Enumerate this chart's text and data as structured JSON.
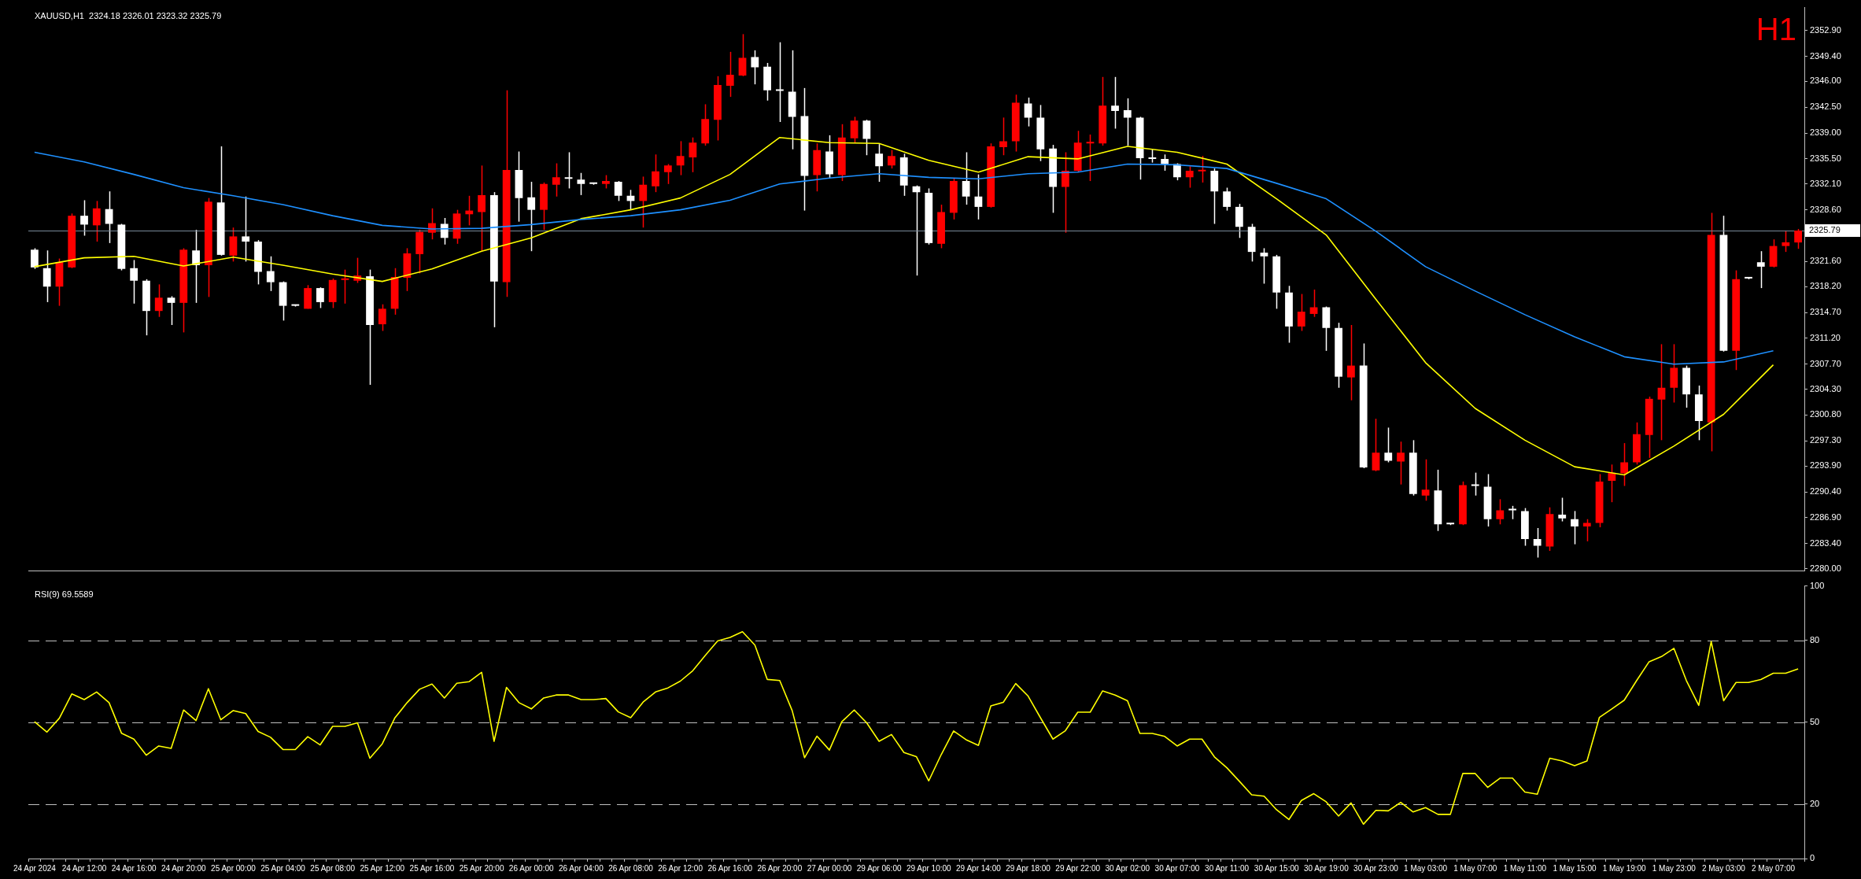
{
  "chart_data": [
    {
      "type": "candlestick",
      "title": "XAUUSD,H1  2324.18 2326.01 2323.32 2325.79",
      "annotations": [
        "H1"
      ],
      "categories": [
        "24 Apr 2024",
        null,
        null,
        null,
        "24 Apr 12:00",
        null,
        null,
        null,
        "24 Apr 16:00",
        null,
        null,
        null,
        "24 Apr 20:00",
        null,
        null,
        null,
        "25 Apr 00:00",
        null,
        null,
        null,
        "25 Apr 04:00",
        null,
        null,
        null,
        "25 Apr 08:00",
        null,
        null,
        null,
        "25 Apr 12:00",
        null,
        null,
        null,
        "25 Apr 16:00",
        null,
        null,
        null,
        "25 Apr 20:00",
        null,
        null,
        null,
        "26 Apr 00:00",
        null,
        null,
        null,
        "26 Apr 04:00",
        null,
        null,
        null,
        "26 Apr 08:00",
        null,
        null,
        null,
        "26 Apr 12:00",
        null,
        null,
        null,
        "26 Apr 16:00",
        null,
        null,
        null,
        "26 Apr 20:00",
        null,
        null,
        null,
        "27 Apr 00:00",
        null,
        null,
        null,
        "29 Apr 06:00",
        null,
        null,
        null,
        "29 Apr 10:00",
        null,
        null,
        null,
        "29 Apr 14:00",
        null,
        null,
        null,
        "29 Apr 18:00",
        null,
        null,
        null,
        "29 Apr 22:00",
        null,
        null,
        null,
        "30 Apr 02:00",
        null,
        null,
        null,
        "30 Apr 07:00",
        null,
        null,
        null,
        "30 Apr 11:00",
        null,
        null,
        null,
        "30 Apr 15:00",
        null,
        null,
        null,
        "30 Apr 19:00",
        null,
        null,
        null,
        "30 Apr 23:00",
        null,
        null,
        null,
        "1 May 03:00",
        null,
        null,
        null,
        "1 May 07:00",
        null,
        null,
        null,
        "1 May 11:00",
        null,
        null,
        null,
        "1 May 15:00",
        null,
        null,
        null,
        "1 May 19:00",
        null,
        null,
        null,
        "1 May 23:00",
        null,
        null,
        null,
        "2 May 03:00",
        null,
        null,
        null,
        "2 May 07:00",
        null,
        null
      ],
      "ohlc": [
        [
          2323.2,
          2323.4,
          2320.6,
          2320.8
        ],
        [
          2320.7,
          2323.1,
          2316.1,
          2318.2
        ],
        [
          2318.2,
          2322.0,
          2315.6,
          2321.5
        ],
        [
          2320.8,
          2328.1,
          2320.7,
          2327.8
        ],
        [
          2327.8,
          2329.9,
          2325.1,
          2326.6
        ],
        [
          2326.5,
          2329.8,
          2324.3,
          2328.8
        ],
        [
          2328.7,
          2331.1,
          2324.1,
          2326.7
        ],
        [
          2326.6,
          2326.7,
          2320.4,
          2320.6
        ],
        [
          2320.7,
          2321.8,
          2315.9,
          2319.0
        ],
        [
          2319.0,
          2319.2,
          2311.6,
          2314.9
        ],
        [
          2314.9,
          2318.5,
          2314.1,
          2316.7
        ],
        [
          2316.7,
          2316.9,
          2313.0,
          2316.0
        ],
        [
          2316.0,
          2323.4,
          2312.0,
          2323.2
        ],
        [
          2323.1,
          2325.9,
          2316.0,
          2321.1
        ],
        [
          2321.1,
          2330.2,
          2316.8,
          2329.7
        ],
        [
          2329.6,
          2337.2,
          2322.4,
          2322.5
        ],
        [
          2322.4,
          2326.2,
          2321.6,
          2325.0
        ],
        [
          2325.0,
          2330.4,
          2321.6,
          2324.3
        ],
        [
          2324.3,
          2324.5,
          2318.5,
          2320.2
        ],
        [
          2320.3,
          2322.3,
          2317.6,
          2318.8
        ],
        [
          2318.8,
          2318.9,
          2313.6,
          2315.6
        ],
        [
          2315.6,
          2315.7,
          2315.5,
          2315.6
        ],
        [
          2315.2,
          2318.4,
          2315.2,
          2318.0
        ],
        [
          2318.0,
          2318.1,
          2315.3,
          2316.1
        ],
        [
          2316.1,
          2319.3,
          2315.3,
          2319.1
        ],
        [
          2319.1,
          2320.5,
          2315.9,
          2319.2
        ],
        [
          2319.0,
          2322.1,
          2318.7,
          2319.7
        ],
        [
          2319.6,
          2320.5,
          2304.9,
          2313.0
        ],
        [
          2313.1,
          2315.8,
          2312.2,
          2315.2
        ],
        [
          2315.2,
          2320.7,
          2314.4,
          2319.5
        ],
        [
          2319.4,
          2323.4,
          2317.6,
          2322.7
        ],
        [
          2322.6,
          2325.9,
          2320.0,
          2325.6
        ],
        [
          2325.5,
          2328.8,
          2324.6,
          2326.8
        ],
        [
          2326.7,
          2327.5,
          2323.9,
          2324.8
        ],
        [
          2324.7,
          2328.6,
          2324.0,
          2328.1
        ],
        [
          2328.0,
          2330.5,
          2326.5,
          2328.5
        ],
        [
          2328.3,
          2334.6,
          2323.0,
          2330.6
        ],
        [
          2330.6,
          2331.0,
          2312.7,
          2318.9
        ],
        [
          2318.8,
          2344.8,
          2316.8,
          2334.0
        ],
        [
          2334.0,
          2336.5,
          2327.0,
          2330.2
        ],
        [
          2330.3,
          2332.4,
          2323.0,
          2328.6
        ],
        [
          2328.6,
          2332.3,
          2325.9,
          2332.1
        ],
        [
          2332.0,
          2334.9,
          2330.4,
          2333.0
        ],
        [
          2332.9,
          2336.4,
          2331.5,
          2332.8
        ],
        [
          2332.7,
          2333.6,
          2330.6,
          2332.1
        ],
        [
          2332.1,
          2332.2,
          2332.0,
          2332.1
        ],
        [
          2332.1,
          2333.3,
          2331.5,
          2332.5
        ],
        [
          2332.4,
          2332.5,
          2329.8,
          2330.5
        ],
        [
          2330.5,
          2331.3,
          2328.6,
          2329.8
        ],
        [
          2329.8,
          2333.1,
          2326.2,
          2332.0
        ],
        [
          2331.8,
          2336.1,
          2331.0,
          2333.8
        ],
        [
          2333.7,
          2334.8,
          2332.1,
          2334.6
        ],
        [
          2334.6,
          2337.9,
          2333.3,
          2335.9
        ],
        [
          2335.7,
          2338.4,
          2333.7,
          2337.7
        ],
        [
          2337.6,
          2342.9,
          2337.3,
          2340.9
        ],
        [
          2340.8,
          2346.7,
          2338.0,
          2345.5
        ],
        [
          2345.4,
          2350.0,
          2343.9,
          2346.9
        ],
        [
          2346.8,
          2352.4,
          2346.7,
          2349.2
        ],
        [
          2349.3,
          2350.2,
          2345.6,
          2347.9
        ],
        [
          2348.0,
          2348.5,
          2343.4,
          2344.8
        ],
        [
          2344.7,
          2351.3,
          2340.5,
          2344.7
        ],
        [
          2344.6,
          2350.2,
          2336.8,
          2341.2
        ],
        [
          2341.3,
          2345.1,
          2328.5,
          2333.2
        ],
        [
          2333.3,
          2337.6,
          2331.1,
          2336.7
        ],
        [
          2336.5,
          2338.7,
          2332.9,
          2333.4
        ],
        [
          2333.3,
          2340.2,
          2332.5,
          2338.4
        ],
        [
          2338.3,
          2341.2,
          2337.7,
          2340.7
        ],
        [
          2340.7,
          2340.8,
          2336.0,
          2338.2
        ],
        [
          2336.2,
          2337.5,
          2332.4,
          2334.5
        ],
        [
          2334.6,
          2336.7,
          2334.2,
          2335.9
        ],
        [
          2335.7,
          2336.2,
          2330.5,
          2331.9
        ],
        [
          2331.8,
          2331.9,
          2319.7,
          2331.0
        ],
        [
          2330.9,
          2331.5,
          2323.9,
          2324.1
        ],
        [
          2324.0,
          2329.3,
          2323.4,
          2328.3
        ],
        [
          2328.2,
          2332.9,
          2327.3,
          2332.5
        ],
        [
          2332.5,
          2336.4,
          2329.3,
          2330.4
        ],
        [
          2330.4,
          2333.4,
          2327.3,
          2329.0
        ],
        [
          2329.0,
          2337.6,
          2328.9,
          2337.2
        ],
        [
          2337.1,
          2341.1,
          2336.0,
          2337.9
        ],
        [
          2337.9,
          2344.2,
          2336.5,
          2343.1
        ],
        [
          2343.0,
          2343.8,
          2339.9,
          2341.1
        ],
        [
          2341.1,
          2342.8,
          2335.2,
          2336.8
        ],
        [
          2336.9,
          2337.4,
          2328.2,
          2331.7
        ],
        [
          2331.7,
          2336.4,
          2325.5,
          2333.9
        ],
        [
          2333.9,
          2339.3,
          2333.7,
          2337.7
        ],
        [
          2337.6,
          2338.8,
          2332.5,
          2337.7
        ],
        [
          2337.6,
          2346.6,
          2337.3,
          2342.7
        ],
        [
          2342.7,
          2346.6,
          2339.6,
          2342.0
        ],
        [
          2342.1,
          2343.7,
          2337.3,
          2341.1
        ],
        [
          2341.1,
          2341.2,
          2332.7,
          2335.6
        ],
        [
          2335.5,
          2336.8,
          2335.0,
          2335.5
        ],
        [
          2335.5,
          2336.1,
          2333.9,
          2334.8
        ],
        [
          2334.8,
          2334.9,
          2332.6,
          2333.0
        ],
        [
          2333.0,
          2334.5,
          2331.6,
          2333.9
        ],
        [
          2333.8,
          2335.9,
          2332.3,
          2333.9
        ],
        [
          2333.9,
          2334.2,
          2326.7,
          2331.1
        ],
        [
          2331.1,
          2331.6,
          2328.5,
          2329.0
        ],
        [
          2329.0,
          2329.4,
          2324.8,
          2326.3
        ],
        [
          2326.3,
          2326.7,
          2321.6,
          2322.9
        ],
        [
          2322.8,
          2323.4,
          2318.6,
          2322.3
        ],
        [
          2322.3,
          2322.5,
          2315.2,
          2317.4
        ],
        [
          2317.4,
          2318.3,
          2310.6,
          2312.8
        ],
        [
          2312.8,
          2317.2,
          2312.2,
          2314.8
        ],
        [
          2314.5,
          2317.8,
          2314.1,
          2315.4
        ],
        [
          2315.4,
          2315.5,
          2309.5,
          2312.6
        ],
        [
          2312.6,
          2313.3,
          2304.5,
          2306.0
        ],
        [
          2305.9,
          2313.0,
          2302.8,
          2307.5
        ],
        [
          2307.5,
          2310.5,
          2293.6,
          2293.7
        ],
        [
          2293.3,
          2300.3,
          2293.2,
          2295.7
        ],
        [
          2295.7,
          2299.1,
          2294.4,
          2294.6
        ],
        [
          2294.5,
          2297.2,
          2291.4,
          2295.7
        ],
        [
          2295.7,
          2297.4,
          2289.9,
          2290.1
        ],
        [
          2289.9,
          2294.8,
          2289.2,
          2290.7
        ],
        [
          2290.6,
          2293.4,
          2285.1,
          2286.0
        ],
        [
          2286.0,
          2286.1,
          2285.9,
          2286.0
        ],
        [
          2286.0,
          2291.8,
          2285.9,
          2291.3
        ],
        [
          2291.2,
          2293.0,
          2289.9,
          2291.2
        ],
        [
          2291.1,
          2292.8,
          2285.7,
          2286.7
        ],
        [
          2286.7,
          2289.4,
          2286.0,
          2287.9
        ],
        [
          2287.9,
          2288.5,
          2286.7,
          2287.9
        ],
        [
          2287.8,
          2288.2,
          2283.1,
          2284.0
        ],
        [
          2284.0,
          2285.5,
          2281.5,
          2283.1
        ],
        [
          2283.0,
          2288.3,
          2282.4,
          2287.4
        ],
        [
          2287.3,
          2289.6,
          2286.4,
          2286.8
        ],
        [
          2286.7,
          2287.8,
          2283.3,
          2285.7
        ],
        [
          2285.7,
          2286.7,
          2283.7,
          2286.2
        ],
        [
          2286.2,
          2292.8,
          2285.6,
          2291.8
        ],
        [
          2291.9,
          2294.1,
          2289.0,
          2293.0
        ],
        [
          2292.9,
          2297.0,
          2291.2,
          2294.4
        ],
        [
          2294.4,
          2299.8,
          2294.1,
          2298.2
        ],
        [
          2298.1,
          2303.3,
          2295.0,
          2303.0
        ],
        [
          2302.9,
          2310.4,
          2297.4,
          2304.5
        ],
        [
          2304.5,
          2310.4,
          2302.5,
          2307.2
        ],
        [
          2307.2,
          2307.5,
          2301.8,
          2303.6
        ],
        [
          2303.6,
          2304.8,
          2297.4,
          2300.0
        ],
        [
          2299.8,
          2328.2,
          2295.9,
          2325.2
        ],
        [
          2325.2,
          2327.8,
          2309.4,
          2309.5
        ],
        [
          2309.5,
          2320.4,
          2306.9,
          2319.2
        ],
        [
          2319.3,
          2319.4,
          2319.2,
          2319.3
        ],
        [
          2321.5,
          2323.0,
          2318.0,
          2320.9
        ],
        [
          2320.9,
          2324.6,
          2320.8,
          2323.7
        ],
        [
          2323.7,
          2325.8,
          2322.9,
          2324.2
        ],
        [
          2324.18,
          2326.01,
          2323.32,
          2325.79
        ]
      ],
      "colors": [
        "#ffffff",
        "#ffffff",
        "#ff0000",
        "#ff0000",
        "#ffffff",
        "#ff0000",
        "#ffffff",
        "#ffffff",
        "#ffffff",
        "#ffffff",
        "#ff0000",
        "#ffffff",
        "#ff0000",
        "#ffffff",
        "#ff0000",
        "#ffffff",
        "#ff0000",
        "#ffffff",
        "#ffffff",
        "#ffffff",
        "#ffffff",
        "#ffffff",
        "#ff0000",
        "#ffffff",
        "#ff0000",
        "#ff0000",
        "#ff0000",
        "#ffffff",
        "#ff0000",
        "#ff0000",
        "#ff0000",
        "#ff0000",
        "#ff0000",
        "#ffffff",
        "#ff0000",
        "#ff0000",
        "#ff0000",
        "#ffffff",
        "#ff0000",
        "#ffffff",
        "#ffffff",
        "#ff0000",
        "#ff0000",
        "#ffffff",
        "#ffffff",
        "#ffffff",
        "#ff0000",
        "#ffffff",
        "#ffffff",
        "#ff0000",
        "#ff0000",
        "#ff0000",
        "#ff0000",
        "#ff0000",
        "#ff0000",
        "#ff0000",
        "#ff0000",
        "#ff0000",
        "#ffffff",
        "#ffffff",
        "#ffffff",
        "#ffffff",
        "#ffffff",
        "#ff0000",
        "#ffffff",
        "#ff0000",
        "#ff0000",
        "#ffffff",
        "#ffffff",
        "#ff0000",
        "#ffffff",
        "#ffffff",
        "#ffffff",
        "#ff0000",
        "#ff0000",
        "#ffffff",
        "#ffffff",
        "#ff0000",
        "#ff0000",
        "#ff0000",
        "#ffffff",
        "#ffffff",
        "#ffffff",
        "#ff0000",
        "#ff0000",
        "#ff0000",
        "#ff0000",
        "#ffffff",
        "#ffffff",
        "#ffffff",
        "#ffffff",
        "#ffffff",
        "#ffffff",
        "#ff0000",
        "#ff0000",
        "#ffffff",
        "#ffffff",
        "#ffffff",
        "#ffffff",
        "#ffffff",
        "#ffffff",
        "#ffffff",
        "#ff0000",
        "#ff0000",
        "#ffffff",
        "#ffffff",
        "#ff0000",
        "#ffffff",
        "#ff0000",
        "#ffffff",
        "#ff0000",
        "#ffffff",
        "#ff0000",
        "#ffffff",
        "#ffffff",
        "#ff0000",
        "#ffffff",
        "#ffffff",
        "#ff0000",
        "#ffffff",
        "#ffffff",
        "#ffffff",
        "#ff0000",
        "#ffffff",
        "#ffffff",
        "#ff0000",
        "#ff0000",
        "#ff0000",
        "#ff0000",
        "#ff0000",
        "#ff0000",
        "#ff0000",
        "#ff0000",
        "#ffffff",
        "#ffffff",
        "#ff0000",
        "#ffffff",
        "#ff0000",
        "#ffffff",
        "#ffffff",
        "#ff0000",
        "#ff0000",
        "#ff0000"
      ],
      "series": [
        {
          "type": "line",
          "color": "#ffff00",
          "x": [
            "24 Apr 2024",
            "24 Apr 12:00",
            "24 Apr 16:00",
            "24 Apr 20:00",
            "25 Apr 00:00",
            "25 Apr 04:00",
            "25 Apr 08:00",
            "25 Apr 12:00",
            "25 Apr 16:00",
            "25 Apr 20:00",
            "26 Apr 00:00",
            "26 Apr 04:00",
            "26 Apr 08:00",
            "26 Apr 12:00",
            "26 Apr 16:00",
            "26 Apr 20:00",
            "27 Apr 00:00",
            "29 Apr 06:00",
            "29 Apr 10:00",
            "29 Apr 14:00",
            "29 Apr 18:00",
            "29 Apr 22:00",
            "30 Apr 02:00",
            "30 Apr 07:00",
            "30 Apr 11:00",
            "30 Apr 15:00",
            "30 Apr 19:00",
            "30 Apr 23:00",
            "1 May 03:00",
            "1 May 07:00",
            "1 May 11:00",
            "1 May 15:00",
            "1 May 19:00",
            "1 May 23:00",
            "2 May 03:00",
            "2 May 07:00"
          ],
          "values": [
            2320.9,
            2322.1,
            2322.3,
            2321.0,
            2322.2,
            2321.1,
            2319.9,
            2318.9,
            2320.6,
            2323.0,
            2324.8,
            2327.4,
            2328.6,
            2330.2,
            2333.4,
            2338.4,
            2337.7,
            2337.6,
            2335.3,
            2333.7,
            2335.8,
            2335.5,
            2337.2,
            2336.4,
            2334.8,
            2330.1,
            2325.2,
            2316.5,
            2307.9,
            2301.7,
            2297.4,
            2293.8,
            2292.7,
            2296.6,
            2300.9,
            2307.6
          ]
        },
        {
          "type": "line",
          "color": "#1e90ff",
          "x": [
            "24 Apr 2024",
            "24 Apr 12:00",
            "24 Apr 16:00",
            "24 Apr 20:00",
            "25 Apr 00:00",
            "25 Apr 04:00",
            "25 Apr 08:00",
            "25 Apr 12:00",
            "25 Apr 16:00",
            "25 Apr 20:00",
            "26 Apr 00:00",
            "26 Apr 04:00",
            "26 Apr 08:00",
            "26 Apr 12:00",
            "26 Apr 16:00",
            "26 Apr 20:00",
            "27 Apr 00:00",
            "29 Apr 06:00",
            "29 Apr 10:00",
            "29 Apr 14:00",
            "29 Apr 18:00",
            "29 Apr 22:00",
            "30 Apr 02:00",
            "30 Apr 07:00",
            "30 Apr 11:00",
            "30 Apr 15:00",
            "30 Apr 19:00",
            "30 Apr 23:00",
            "1 May 03:00",
            "1 May 07:00",
            "1 May 11:00",
            "1 May 15:00",
            "1 May 19:00",
            "1 May 23:00",
            "2 May 03:00",
            "2 May 07:00"
          ],
          "values": [
            2336.4,
            2335.1,
            2333.4,
            2331.6,
            2330.5,
            2329.3,
            2327.8,
            2326.5,
            2326.0,
            2326.1,
            2326.6,
            2327.3,
            2327.8,
            2328.6,
            2329.9,
            2332.1,
            2332.9,
            2333.5,
            2333.0,
            2332.8,
            2333.5,
            2333.7,
            2334.8,
            2334.7,
            2334.2,
            2332.2,
            2330.1,
            2325.7,
            2320.9,
            2317.6,
            2314.4,
            2311.4,
            2308.7,
            2307.7,
            2308.0,
            2309.5
          ]
        }
      ],
      "ylim": [
        2279.7,
        2356.0
      ],
      "yticks": [
        {
          "value": 2280,
          "label": "2280.00"
        },
        {
          "value": 2283.4,
          "label": "2283.40"
        },
        {
          "value": 2286.9,
          "label": "2286.90"
        },
        {
          "value": 2290.4,
          "label": "2290.40"
        },
        {
          "value": 2293.9,
          "label": "2293.90"
        },
        {
          "value": 2297.3,
          "label": "2297.30"
        },
        {
          "value": 2300.8,
          "label": "2300.80"
        },
        {
          "value": 2304.3,
          "label": "2304.30"
        },
        {
          "value": 2307.7,
          "label": "2307.70"
        },
        {
          "value": 2311.2,
          "label": "2311.20"
        },
        {
          "value": 2314.7,
          "label": "2314.70"
        },
        {
          "value": 2318.2,
          "label": "2318.20"
        },
        {
          "value": 2321.6,
          "label": "2321.60"
        },
        {
          "value": 2328.6,
          "label": "2328.60"
        },
        {
          "value": 2332.1,
          "label": "2332.10"
        },
        {
          "value": 2335.5,
          "label": "2335.50"
        },
        {
          "value": 2339,
          "label": "2339.00"
        },
        {
          "value": 2342.5,
          "label": "2342.50"
        },
        {
          "value": 2346,
          "label": "2346.00"
        },
        {
          "value": 2349.4,
          "label": "2349.40"
        },
        {
          "value": 2352.9,
          "label": "2352.90"
        }
      ],
      "ref_lines": [
        {
          "axis": "y",
          "value": 2325.79,
          "label": "2325.79",
          "color": "#778899",
          "line_style": "solid"
        }
      ],
      "tick_labels": "y"
    },
    {
      "type": "line",
      "title": "RSI(9) 69.5589",
      "categories": [
        "24 Apr 2024",
        null,
        null,
        null,
        "24 Apr 12:00",
        null,
        null,
        null,
        "24 Apr 16:00",
        null,
        null,
        null,
        "24 Apr 20:00",
        null,
        null,
        null,
        "25 Apr 00:00",
        null,
        null,
        null,
        "25 Apr 04:00",
        null,
        null,
        null,
        "25 Apr 08:00",
        null,
        null,
        null,
        "25 Apr 12:00",
        null,
        null,
        null,
        "25 Apr 16:00",
        null,
        null,
        null,
        "25 Apr 20:00",
        null,
        null,
        null,
        "26 Apr 00:00",
        null,
        null,
        null,
        "26 Apr 04:00",
        null,
        null,
        null,
        "26 Apr 08:00",
        null,
        null,
        null,
        "26 Apr 12:00",
        null,
        null,
        null,
        "26 Apr 16:00",
        null,
        null,
        null,
        "26 Apr 20:00",
        null,
        null,
        null,
        "27 Apr 00:00",
        null,
        null,
        null,
        "29 Apr 06:00",
        null,
        null,
        null,
        "29 Apr 10:00",
        null,
        null,
        null,
        "29 Apr 14:00",
        null,
        null,
        null,
        "29 Apr 18:00",
        null,
        null,
        null,
        "29 Apr 22:00",
        null,
        null,
        null,
        "30 Apr 02:00",
        null,
        null,
        null,
        "30 Apr 07:00",
        null,
        null,
        null,
        "30 Apr 11:00",
        null,
        null,
        null,
        "30 Apr 15:00",
        null,
        null,
        null,
        "30 Apr 19:00",
        null,
        null,
        null,
        "30 Apr 23:00",
        null,
        null,
        null,
        "1 May 03:00",
        null,
        null,
        null,
        "1 May 07:00",
        null,
        null,
        null,
        "1 May 11:00",
        null,
        null,
        null,
        "1 May 15:00",
        null,
        null,
        null,
        "1 May 19:00",
        null,
        null,
        null,
        "1 May 23:00",
        null,
        null,
        null,
        "2 May 03:00",
        null,
        null,
        null,
        "2 May 07:00",
        null,
        null
      ],
      "series": [
        {
          "color": "#ffff00",
          "values": [
            50.2,
            46.4,
            51.5,
            60.4,
            58.3,
            61.1,
            57.2,
            46.0,
            43.8,
            37.9,
            41.3,
            40.4,
            54.5,
            50.6,
            62.3,
            50.9,
            54.3,
            53.2,
            46.6,
            44.5,
            40.0,
            40.0,
            44.7,
            41.7,
            48.5,
            48.5,
            49.8,
            36.8,
            42.1,
            51.5,
            57.2,
            62.1,
            64.0,
            58.9,
            64.3,
            64.9,
            68.3,
            43.0,
            62.8,
            57.2,
            54.9,
            58.9,
            60.0,
            60.0,
            58.3,
            58.3,
            58.7,
            53.8,
            51.7,
            57.4,
            61.1,
            62.6,
            65.1,
            68.9,
            74.5,
            79.8,
            81.1,
            83.2,
            78.3,
            65.7,
            65.3,
            54.3,
            37.0,
            44.9,
            39.8,
            50.2,
            54.5,
            49.8,
            43.0,
            45.5,
            38.9,
            37.4,
            28.5,
            38.1,
            46.8,
            43.6,
            41.5,
            56.0,
            57.3,
            64.2,
            59.6,
            51.6,
            43.8,
            46.9,
            53.7,
            53.7,
            61.5,
            60.0,
            57.9,
            45.9,
            45.9,
            44.8,
            41.3,
            43.8,
            43.8,
            37.3,
            33.3,
            28.4,
            23.4,
            22.9,
            17.9,
            14.3,
            21.3,
            23.8,
            20.8,
            15.6,
            20.4,
            12.6,
            17.7,
            17.5,
            20.6,
            17.1,
            18.7,
            16.2,
            16.2,
            31.2,
            31.2,
            26.1,
            29.5,
            29.5,
            24.4,
            23.6,
            36.8,
            35.8,
            34.1,
            35.8,
            51.8,
            54.9,
            58.1,
            65.3,
            72.2,
            74.1,
            77.1,
            65.3,
            56.2,
            79.6,
            57.9,
            64.6,
            64.6,
            65.7,
            68.0,
            68.0,
            69.6
          ]
        }
      ],
      "ylim": [
        0,
        100
      ],
      "yticks": [
        0,
        20,
        50,
        80,
        100
      ],
      "ref_lines": [
        {
          "axis": "y",
          "value": 80,
          "color": "#c0c0c0",
          "line_style": "dashed"
        },
        {
          "axis": "y",
          "value": 50,
          "color": "#c0c0c0",
          "line_style": "dashed"
        },
        {
          "axis": "y",
          "value": 20,
          "color": "#c0c0c0",
          "line_style": "dashed"
        }
      ]
    }
  ]
}
